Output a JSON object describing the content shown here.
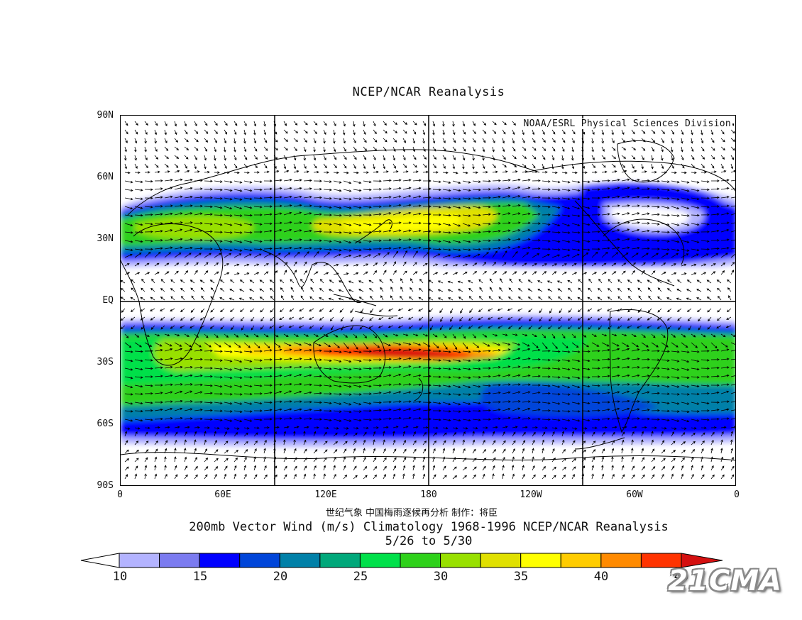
{
  "title": "NCEP/NCAR Reanalysis",
  "credit": "NOAA/ESRL Physical Sciences Division",
  "lat_labels": [
    "90N",
    "60N",
    "30N",
    "EQ",
    "30S",
    "60S",
    "90S"
  ],
  "lon_labels": [
    "0",
    "60E",
    "120E",
    "180",
    "120W",
    "60W",
    "0"
  ],
  "note": "世纪气象   中国梅雨逐候再分析   制作：将臣",
  "caption_line1": "200mb Vector Wind (m/s) Climatology 1968-1996 NCEP/NCAR Reanalysis",
  "caption_line2": "5/26  to 5/30",
  "colorbar": {
    "labels": [
      "10",
      "15",
      "20",
      "25",
      "30",
      "35",
      "40",
      "45"
    ],
    "colors": [
      "#b3b3ff",
      "#7b7bf0",
      "#0000ff",
      "#0045d9",
      "#0080a8",
      "#00a87a",
      "#00e04a",
      "#2ed11a",
      "#98e000",
      "#e0e000",
      "#ffff00",
      "#ffcc00",
      "#ff8a00",
      "#ff3300",
      "#d41010"
    ]
  },
  "watermark": "21CMA",
  "colors": {
    "low_arrow": "#ffffff",
    "high_arrow": "#d41010",
    "lines": "#000000"
  }
}
